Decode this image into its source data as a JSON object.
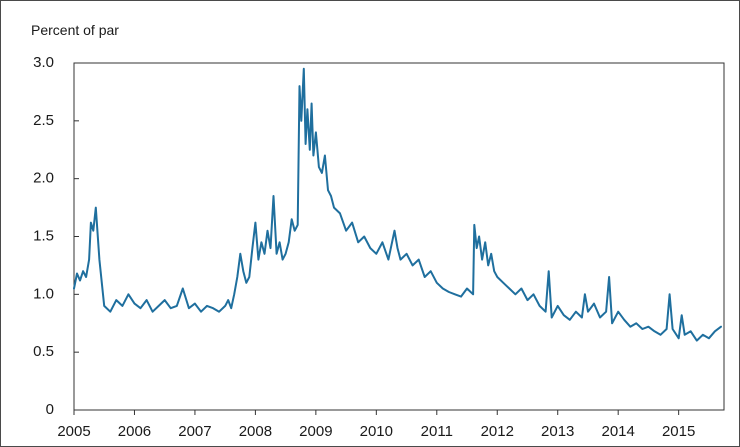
{
  "chart_data": {
    "type": "line",
    "title": "",
    "ylabel": "Percent of par",
    "xlabel": "",
    "ylim": [
      0,
      3.0
    ],
    "xlim": [
      2005.0,
      2015.75
    ],
    "y_ticks": [
      "0",
      "0.5",
      "1.0",
      "1.5",
      "2.0",
      "2.5",
      "3.0"
    ],
    "y_tick_values": [
      0,
      0.5,
      1.0,
      1.5,
      2.0,
      2.5,
      3.0
    ],
    "x_ticks": [
      "2005",
      "2006",
      "2007",
      "2008",
      "2009",
      "2010",
      "2011",
      "2012",
      "2013",
      "2014",
      "2015"
    ],
    "x_tick_values": [
      2005,
      2006,
      2007,
      2008,
      2009,
      2010,
      2011,
      2012,
      2013,
      2014,
      2015
    ],
    "grid": false,
    "legend": "none",
    "line_color": "#1f6f9e",
    "series": [
      {
        "x": [
          2005.0,
          2005.05,
          2005.1,
          2005.15,
          2005.2,
          2005.25,
          2005.28,
          2005.32,
          2005.36,
          2005.42,
          2005.5,
          2005.6,
          2005.7,
          2005.8,
          2005.9,
          2006.0,
          2006.1,
          2006.2,
          2006.3,
          2006.4,
          2006.5,
          2006.6,
          2006.7,
          2006.8,
          2006.9,
          2007.0,
          2007.1,
          2007.2,
          2007.3,
          2007.4,
          2007.5,
          2007.55,
          2007.6,
          2007.65,
          2007.7,
          2007.75,
          2007.8,
          2007.85,
          2007.9,
          2007.95,
          2008.0,
          2008.05,
          2008.1,
          2008.15,
          2008.2,
          2008.25,
          2008.3,
          2008.35,
          2008.4,
          2008.45,
          2008.5,
          2008.55,
          2008.6,
          2008.65,
          2008.7,
          2008.73,
          2008.76,
          2008.8,
          2008.83,
          2008.86,
          2008.9,
          2008.93,
          2008.96,
          2009.0,
          2009.05,
          2009.1,
          2009.15,
          2009.2,
          2009.25,
          2009.3,
          2009.4,
          2009.5,
          2009.6,
          2009.7,
          2009.8,
          2009.9,
          2010.0,
          2010.1,
          2010.2,
          2010.3,
          2010.35,
          2010.4,
          2010.5,
          2010.6,
          2010.7,
          2010.8,
          2010.9,
          2011.0,
          2011.1,
          2011.2,
          2011.3,
          2011.4,
          2011.5,
          2011.6,
          2011.62,
          2011.66,
          2011.7,
          2011.75,
          2011.8,
          2011.85,
          2011.9,
          2011.95,
          2012.0,
          2012.1,
          2012.2,
          2012.3,
          2012.4,
          2012.5,
          2012.6,
          2012.7,
          2012.8,
          2012.85,
          2012.9,
          2013.0,
          2013.1,
          2013.2,
          2013.3,
          2013.4,
          2013.45,
          2013.5,
          2013.6,
          2013.7,
          2013.8,
          2013.85,
          2013.9,
          2014.0,
          2014.1,
          2014.2,
          2014.3,
          2014.4,
          2014.5,
          2014.6,
          2014.7,
          2014.8,
          2014.85,
          2014.9,
          2015.0,
          2015.05,
          2015.1,
          2015.2,
          2015.3,
          2015.4,
          2015.5,
          2015.6,
          2015.7
        ],
        "y": [
          1.05,
          1.18,
          1.12,
          1.2,
          1.15,
          1.3,
          1.62,
          1.55,
          1.75,
          1.3,
          0.9,
          0.85,
          0.95,
          0.9,
          1.0,
          0.92,
          0.88,
          0.95,
          0.85,
          0.9,
          0.95,
          0.88,
          0.9,
          1.05,
          0.88,
          0.92,
          0.85,
          0.9,
          0.88,
          0.85,
          0.9,
          0.95,
          0.88,
          1.0,
          1.15,
          1.35,
          1.2,
          1.1,
          1.15,
          1.4,
          1.62,
          1.3,
          1.45,
          1.35,
          1.55,
          1.4,
          1.85,
          1.35,
          1.45,
          1.3,
          1.35,
          1.45,
          1.65,
          1.55,
          1.6,
          2.8,
          2.5,
          2.95,
          2.3,
          2.6,
          2.25,
          2.65,
          2.2,
          2.4,
          2.1,
          2.05,
          2.2,
          1.9,
          1.85,
          1.75,
          1.7,
          1.55,
          1.62,
          1.45,
          1.5,
          1.4,
          1.35,
          1.45,
          1.3,
          1.55,
          1.4,
          1.3,
          1.35,
          1.25,
          1.3,
          1.15,
          1.2,
          1.1,
          1.05,
          1.02,
          1.0,
          0.98,
          1.05,
          1.0,
          1.6,
          1.4,
          1.5,
          1.3,
          1.45,
          1.25,
          1.35,
          1.2,
          1.15,
          1.1,
          1.05,
          1.0,
          1.05,
          0.95,
          1.0,
          0.9,
          0.85,
          1.2,
          0.8,
          0.9,
          0.82,
          0.78,
          0.85,
          0.8,
          1.0,
          0.85,
          0.92,
          0.8,
          0.85,
          1.15,
          0.75,
          0.85,
          0.78,
          0.72,
          0.75,
          0.7,
          0.72,
          0.68,
          0.65,
          0.7,
          1.0,
          0.7,
          0.62,
          0.82,
          0.65,
          0.68,
          0.6,
          0.65,
          0.62,
          0.68,
          0.72
        ]
      }
    ]
  }
}
